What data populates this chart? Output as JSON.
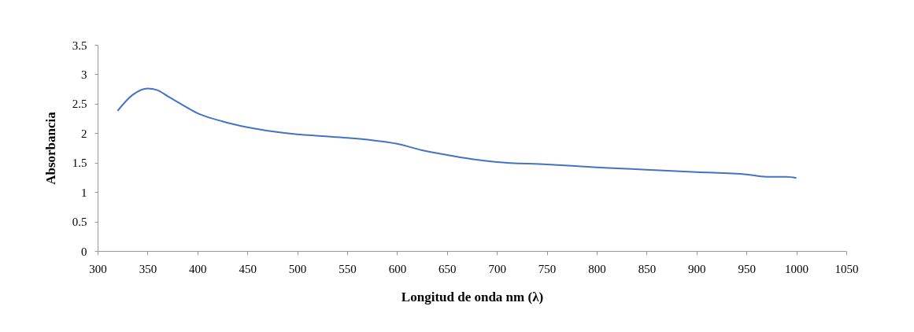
{
  "chart_data": {
    "type": "line",
    "xlabel": "Longitud de onda nm (λ)",
    "ylabel": "Absorbancia",
    "x": [
      320,
      335,
      350,
      360,
      370,
      385,
      400,
      425,
      450,
      475,
      500,
      525,
      550,
      575,
      600,
      625,
      650,
      675,
      700,
      750,
      800,
      850,
      900,
      950,
      970,
      990,
      1000
    ],
    "series": [
      {
        "color": "#4472c4",
        "values": [
          2.38,
          2.65,
          2.76,
          2.73,
          2.63,
          2.48,
          2.34,
          2.2,
          2.1,
          2.03,
          1.98,
          1.95,
          1.92,
          1.88,
          1.82,
          1.71,
          1.63,
          1.56,
          1.51,
          1.47,
          1.42,
          1.38,
          1.34,
          1.3,
          1.26,
          1.26,
          1.24
        ]
      }
    ],
    "xlim": [
      300,
      1050
    ],
    "xticks": [
      300,
      350,
      400,
      450,
      500,
      550,
      600,
      650,
      700,
      750,
      800,
      850,
      900,
      950,
      1000,
      1050
    ],
    "ylim": [
      0,
      3.5
    ],
    "yticks": [
      0,
      0.5,
      1,
      1.5,
      2,
      2.5,
      3,
      3.5
    ],
    "grid": false,
    "marker": "none",
    "line_style": "solid",
    "legend": false
  }
}
